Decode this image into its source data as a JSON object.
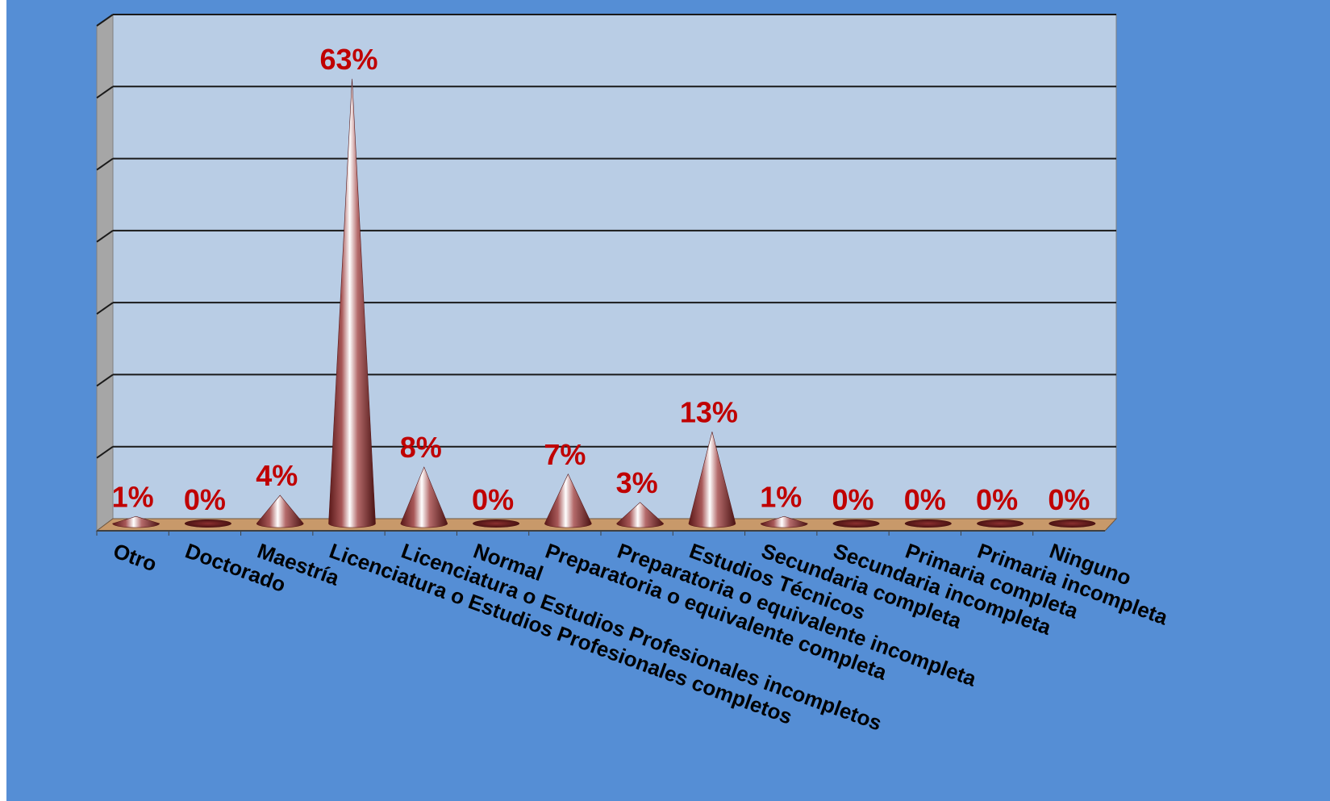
{
  "chart_data": {
    "type": "bar",
    "style": "3d-cone",
    "title": "",
    "xlabel": "",
    "ylabel": "",
    "ylim": [
      0,
      70
    ],
    "grid": true,
    "categories": [
      "Otro",
      "Doctorado",
      "Maestría",
      "Licenciatura o Estudios Profesionales completos",
      "Licenciatura o Estudios Profesionales incompletos",
      "Normal",
      "Preparatoria o equivalente completa",
      "Preparatoria o equivalente incompleta",
      "Estudios Técnicos",
      "Secundaria completa",
      "Secundaria incompleta",
      "Primaria completa",
      "Primaria incompleta",
      "Ninguno"
    ],
    "values": [
      1,
      0,
      4,
      63,
      8,
      0,
      7,
      3,
      13,
      1,
      0,
      0,
      0,
      0
    ],
    "data_labels": [
      "1%",
      "0%",
      "4%",
      "63%",
      "8%",
      "0%",
      "7%",
      "3%",
      "13%",
      "1%",
      "0%",
      "0%",
      "0%",
      "0%"
    ],
    "colors": {
      "background": "#558ed5",
      "plot_area": "#b9cde5",
      "floor": "#c8996a",
      "cone_dark": "#6b1f1f",
      "cone_light": "#ffffff",
      "data_label": "#c00000",
      "gridline": "#1a1a1a",
      "side_wall": "#a6a6a6"
    }
  }
}
